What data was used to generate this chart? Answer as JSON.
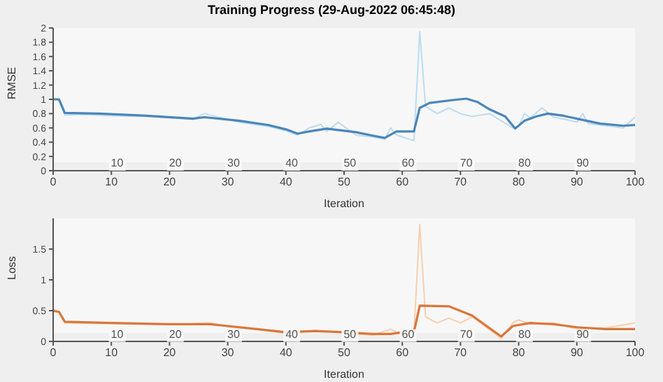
{
  "chart_data": [
    {
      "type": "line",
      "title": "Training Progress (29-Aug-2022 06:45:48)",
      "xlabel": "Iteration",
      "ylabel": "RMSE",
      "xlim": [
        0,
        100
      ],
      "xticks": [
        0,
        10,
        20,
        30,
        40,
        50,
        60,
        70,
        80,
        90,
        100
      ],
      "ylim": [
        0,
        2
      ],
      "yticks": [
        0,
        0.2,
        0.4,
        0.6,
        0.8,
        1,
        1.2,
        1.4,
        1.6,
        1.8,
        2
      ],
      "marker": "none",
      "line_style": "solid",
      "series": [
        {
          "color": "#bcdcf0",
          "x": [
            0,
            1,
            2,
            5,
            10,
            16,
            24,
            26,
            32,
            37,
            40,
            42,
            44,
            46,
            47,
            49,
            52,
            55,
            57,
            58,
            59,
            62,
            63,
            64,
            66,
            68,
            70,
            72,
            75,
            77,
            79,
            80,
            81,
            82,
            84,
            86,
            88,
            90,
            91,
            92,
            94,
            96,
            98,
            100
          ],
          "values": [
            1.0,
            1.0,
            0.78,
            0.79,
            0.77,
            0.76,
            0.72,
            0.8,
            0.68,
            0.62,
            0.56,
            0.5,
            0.6,
            0.65,
            0.55,
            0.68,
            0.5,
            0.47,
            0.44,
            0.6,
            0.5,
            0.42,
            1.95,
            0.9,
            0.8,
            0.88,
            0.8,
            0.76,
            0.8,
            0.7,
            0.6,
            0.62,
            0.8,
            0.74,
            0.88,
            0.75,
            0.72,
            0.68,
            0.8,
            0.66,
            0.64,
            0.62,
            0.6,
            0.75
          ]
        },
        {
          "color": "#4a86b8",
          "x": [
            0,
            1,
            2,
            8,
            16,
            24,
            26,
            32,
            37,
            40,
            42,
            44,
            47,
            52,
            55,
            57,
            59,
            62,
            63,
            64.7,
            68.7,
            71,
            73,
            75,
            77.7,
            79.4,
            81,
            83,
            85,
            87.7,
            91.7,
            94,
            98,
            100
          ],
          "values": [
            1.0,
            1.0,
            0.81,
            0.8,
            0.77,
            0.73,
            0.75,
            0.7,
            0.64,
            0.58,
            0.52,
            0.55,
            0.59,
            0.54,
            0.49,
            0.46,
            0.55,
            0.55,
            0.88,
            0.95,
            0.99,
            1.01,
            0.96,
            0.86,
            0.76,
            0.59,
            0.7,
            0.76,
            0.8,
            0.77,
            0.7,
            0.66,
            0.63,
            0.64
          ]
        }
      ],
      "annotations": [
        "10",
        "20",
        "30",
        "40",
        "50",
        "60",
        "70",
        "80",
        "90"
      ]
    },
    {
      "type": "line",
      "xlabel": "Iteration",
      "ylabel": "Loss",
      "xlim": [
        0,
        100
      ],
      "xticks": [
        0,
        10,
        20,
        30,
        40,
        50,
        60,
        70,
        80,
        90,
        100
      ],
      "ylim": [
        0,
        2
      ],
      "yticks": [
        0,
        0.5,
        1,
        1.5
      ],
      "marker": "none",
      "line_style": "solid",
      "series": [
        {
          "color": "#f6cfae",
          "x": [
            0,
            1,
            2,
            10,
            20,
            27,
            30,
            35,
            40,
            45,
            50,
            55,
            58,
            60,
            62,
            63,
            64,
            66,
            68,
            70,
            72,
            77,
            79,
            80,
            82,
            86,
            90,
            95,
            100
          ],
          "values": [
            0.5,
            0.48,
            0.3,
            0.29,
            0.27,
            0.3,
            0.24,
            0.2,
            0.13,
            0.18,
            0.14,
            0.1,
            0.2,
            0.1,
            0.12,
            1.9,
            0.4,
            0.3,
            0.38,
            0.3,
            0.4,
            0.05,
            0.3,
            0.35,
            0.28,
            0.3,
            0.2,
            0.22,
            0.3
          ]
        },
        {
          "color": "#d9773a",
          "x": [
            0,
            1,
            2,
            10,
            20,
            27,
            30,
            35,
            40,
            45,
            50,
            55,
            58,
            60,
            62,
            63,
            68,
            72,
            77,
            79,
            82,
            86,
            90,
            95,
            100
          ],
          "values": [
            0.5,
            0.48,
            0.32,
            0.3,
            0.28,
            0.28,
            0.25,
            0.2,
            0.15,
            0.17,
            0.15,
            0.12,
            0.12,
            0.15,
            0.15,
            0.58,
            0.57,
            0.42,
            0.08,
            0.25,
            0.3,
            0.28,
            0.23,
            0.2,
            0.2
          ]
        }
      ],
      "annotations": [
        "10",
        "20",
        "30",
        "40",
        "50",
        "60",
        "70",
        "80",
        "90"
      ]
    }
  ]
}
